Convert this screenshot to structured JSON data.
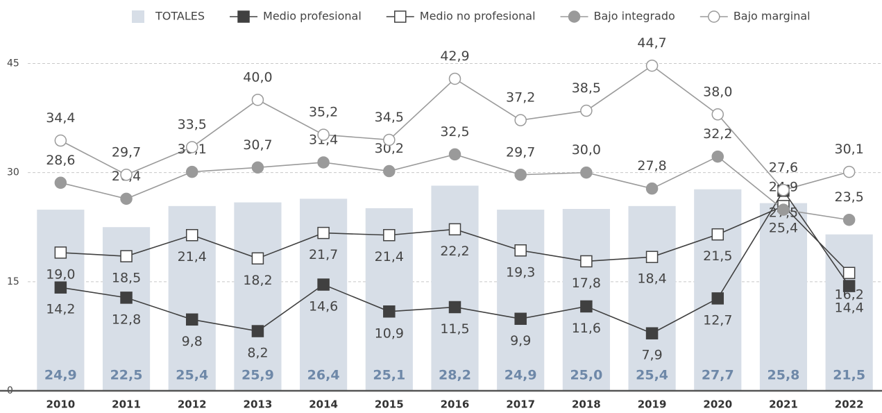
{
  "chart_data": {
    "type": "bar",
    "categories": [
      "2010",
      "2011",
      "2012",
      "2013",
      "2014",
      "2015",
      "2016",
      "2017",
      "2018",
      "2019",
      "2020",
      "2021",
      "2022"
    ],
    "ylim": [
      0,
      48
    ],
    "yticks": [
      0,
      15,
      30,
      45
    ],
    "grid": true,
    "legend": "top",
    "series": [
      {
        "name": "TOTALES",
        "type": "bar",
        "color": "#d7dee7",
        "label_color": "#6e88a8",
        "values": [
          24.9,
          22.5,
          25.4,
          25.9,
          26.4,
          25.1,
          28.2,
          24.9,
          25.0,
          25.4,
          27.7,
          25.8,
          21.5
        ],
        "value_labels": [
          "24,9",
          "22,5",
          "25,4",
          "25,9",
          "26,4",
          "25,1",
          "28,2",
          "24,9",
          "25,0",
          "25,4",
          "27,7",
          "25,8",
          "21,5"
        ]
      },
      {
        "name": "Medio profesional",
        "type": "line",
        "color": "#404040",
        "marker": "square",
        "marker_fill": "#404040",
        "values": [
          14.2,
          12.8,
          9.8,
          8.2,
          14.6,
          10.9,
          11.5,
          9.9,
          11.6,
          7.9,
          12.7,
          27.5,
          14.4
        ],
        "value_labels": [
          "14,2",
          "12,8",
          "9,8",
          "8,2",
          "14,6",
          "10,9",
          "11,5",
          "9,9",
          "11,6",
          "7,9",
          "12,7",
          "27,5",
          "14,4"
        ]
      },
      {
        "name": "Medio no profesional",
        "type": "line",
        "color": "#404040",
        "marker": "square",
        "marker_fill": "#ffffff",
        "values": [
          19.0,
          18.5,
          21.4,
          18.2,
          21.7,
          21.4,
          22.2,
          19.3,
          17.8,
          18.4,
          21.5,
          25.4,
          16.2
        ],
        "value_labels": [
          "19,0",
          "18,5",
          "21,4",
          "18,2",
          "21,7",
          "21,4",
          "22,2",
          "19,3",
          "17,8",
          "18,4",
          "21,5",
          "25,4",
          "16,2"
        ]
      },
      {
        "name": "Bajo integrado",
        "type": "line",
        "color": "#9a9a9a",
        "marker": "circle",
        "marker_fill": "#9a9a9a",
        "values": [
          28.6,
          26.4,
          30.1,
          30.7,
          31.4,
          30.2,
          32.5,
          29.7,
          30.0,
          27.8,
          32.2,
          24.9,
          23.5
        ],
        "value_labels": [
          "28,6",
          "26,4",
          "30,1",
          "30,7",
          "31,4",
          "30,2",
          "32,5",
          "29,7",
          "30,0",
          "27,8",
          "32,2",
          "24,9",
          "23,5"
        ]
      },
      {
        "name": "Bajo marginal",
        "type": "line",
        "color": "#9a9a9a",
        "marker": "circle",
        "marker_fill": "#ffffff",
        "values": [
          34.4,
          29.7,
          33.5,
          40.0,
          35.2,
          34.5,
          42.9,
          37.2,
          38.5,
          44.7,
          38.0,
          27.6,
          30.1
        ],
        "value_labels": [
          "34,4",
          "29,7",
          "33,5",
          "40,0",
          "35,2",
          "34,5",
          "42,9",
          "37,2",
          "38,5",
          "44,7",
          "38,0",
          "27,6",
          "30,1"
        ]
      }
    ]
  }
}
